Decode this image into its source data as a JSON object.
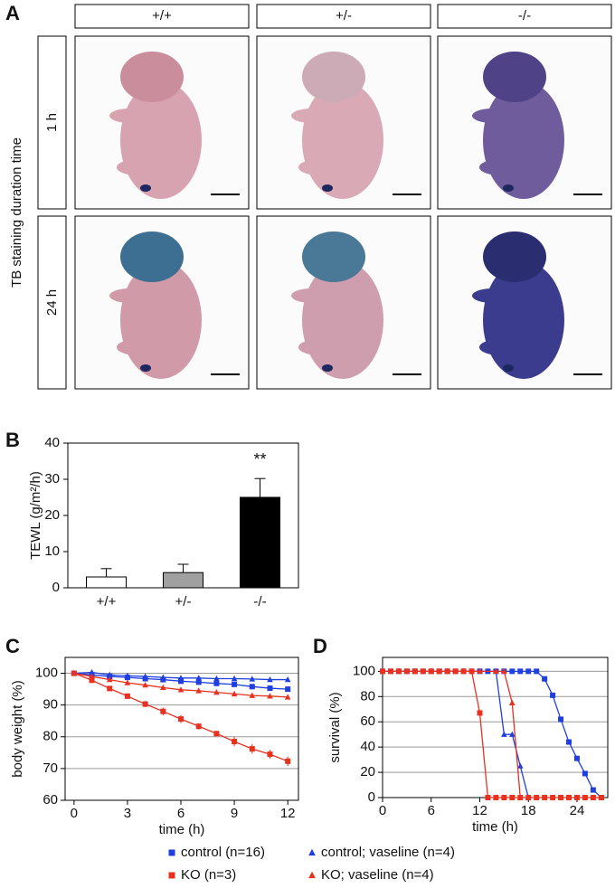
{
  "panel_labels": [
    "A",
    "B",
    "C",
    "D"
  ],
  "figure_a": {
    "columns": [
      "+/+",
      "+/-",
      "-/-"
    ],
    "rows": [
      "1 h",
      "24 h"
    ],
    "row_axis_label": "TB staining duration time"
  },
  "chart_data": [
    {
      "type": "bar",
      "ylabel": "TEWL (g/m²/h)",
      "categories": [
        "+/+",
        "+/-",
        "-/-"
      ],
      "values": [
        3,
        4.2,
        25
      ],
      "errors": [
        2.3,
        2.3,
        5.2
      ],
      "colors": [
        "#ffffff",
        "#a0a0a0",
        "#000000"
      ],
      "ylim": [
        0,
        40
      ],
      "yticks": [
        0,
        10,
        20,
        30,
        40
      ],
      "annotations": [
        {
          "category": "-/-",
          "text": "**"
        }
      ]
    },
    {
      "type": "line",
      "xlabel": "time (h)",
      "ylabel": "body weight (%)",
      "grid": true,
      "x": [
        0,
        1,
        2,
        3,
        4,
        5,
        6,
        7,
        8,
        9,
        10,
        11,
        12
      ],
      "xlim": [
        -0.5,
        12.6
      ],
      "xticks": [
        0,
        3,
        6,
        9,
        12
      ],
      "ylim": [
        60,
        105
      ],
      "yticks": [
        60,
        70,
        80,
        90,
        100
      ],
      "series": [
        {
          "name": "control (n=16)",
          "color": "#1f3fe0",
          "marker": "square",
          "values": [
            100,
            99.5,
            99,
            98.7,
            98.3,
            98,
            97.5,
            97.2,
            96.8,
            96.5,
            95.8,
            95.3,
            95
          ]
        },
        {
          "name": "control; vaseline (n=4)",
          "color": "#1f3fe0",
          "marker": "triangle",
          "values": [
            100,
            100.3,
            99.5,
            99.2,
            99,
            98.7,
            98.5,
            98.5,
            98.3,
            98.3,
            98.2,
            98,
            98
          ]
        },
        {
          "name": "KO (n=3)",
          "color": "#e8311f",
          "marker": "square",
          "values": [
            100,
            97.8,
            95.2,
            92.8,
            90.3,
            88,
            85.6,
            83.3,
            81,
            78.5,
            76.2,
            74.5,
            72.3
          ],
          "errors": [
            0.3,
            0.5,
            0.6,
            0.8,
            1,
            1.2,
            1.3,
            1,
            0.8,
            1.5,
            1.5,
            1.4,
            1.5
          ]
        },
        {
          "name": "KO; vaseline (n=4)",
          "color": "#e8311f",
          "marker": "triangle",
          "values": [
            100,
            99,
            98,
            97,
            96.3,
            95.5,
            94.8,
            94.5,
            94,
            93.5,
            93,
            92.8,
            92.5
          ]
        }
      ]
    },
    {
      "type": "line",
      "xlabel": "time (h)",
      "ylabel": "survival (%)",
      "grid": true,
      "xlim": [
        0,
        27.8
      ],
      "xticks": [
        0,
        6,
        12,
        18,
        24
      ],
      "ylim": [
        0,
        111
      ],
      "yticks": [
        0,
        20,
        40,
        60,
        80,
        100
      ],
      "series": [
        {
          "color": "#1f3fe0",
          "marker": "square",
          "x": [
            0,
            1,
            2,
            3,
            4,
            5,
            6,
            7,
            8,
            9,
            10,
            11,
            12,
            13,
            14,
            15,
            16,
            17,
            18,
            19,
            20,
            21,
            22,
            23,
            24,
            25,
            26,
            27
          ],
          "values": [
            100,
            100,
            100,
            100,
            100,
            100,
            100,
            100,
            100,
            100,
            100,
            100,
            100,
            100,
            100,
            100,
            100,
            100,
            100,
            100,
            94,
            81,
            62,
            44,
            31,
            19,
            6,
            0
          ]
        },
        {
          "color": "#1f3fe0",
          "marker": "triangle",
          "x": [
            0,
            2,
            4,
            6,
            8,
            10,
            12,
            14,
            15,
            16,
            17,
            18
          ],
          "values": [
            100,
            100,
            100,
            100,
            100,
            100,
            100,
            100,
            50,
            50,
            25,
            0
          ]
        },
        {
          "color": "#e8311f",
          "marker": "triangle",
          "x": [
            0,
            2,
            4,
            6,
            8,
            10,
            12,
            14,
            15,
            16,
            17
          ],
          "values": [
            100,
            100,
            100,
            100,
            100,
            100,
            100,
            100,
            100,
            75,
            0
          ]
        },
        {
          "color": "#e8311f",
          "marker": "square",
          "x": [
            0,
            1,
            2,
            3,
            4,
            5,
            6,
            7,
            8,
            9,
            10,
            11,
            12,
            13,
            14,
            15,
            16,
            17,
            18,
            19,
            20,
            21,
            22,
            23,
            24,
            25,
            26,
            27
          ],
          "values": [
            100,
            100,
            100,
            100,
            100,
            100,
            100,
            100,
            100,
            100,
            100,
            100,
            67,
            0,
            0,
            0,
            0,
            0,
            0,
            0,
            0,
            0,
            0,
            0,
            0,
            0,
            0,
            0
          ]
        }
      ]
    }
  ]
}
